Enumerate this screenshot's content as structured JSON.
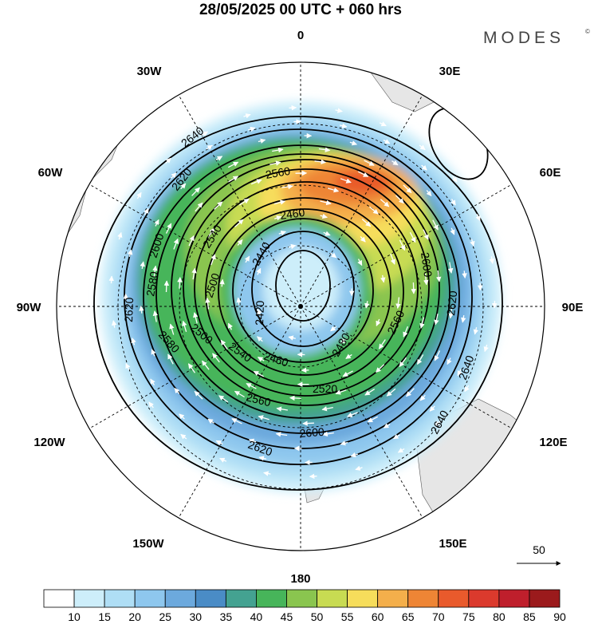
{
  "title": "28/05/2025  00 UTC  + 060 hrs",
  "brand": {
    "name": "MODES",
    "mark": "©"
  },
  "longitude_labels": [
    "0",
    "30E",
    "60E",
    "90E",
    "120E",
    "150E",
    "180",
    "150W",
    "120W",
    "90W",
    "60W",
    "30W"
  ],
  "contour_labels": [
    "2640",
    "2620",
    "2560",
    "2460",
    "2600",
    "2540",
    "2440",
    "2580",
    "2500",
    "2420",
    "2620",
    "2600",
    "2500",
    "2480",
    "2560",
    "2460",
    "2540",
    "2580",
    "2520",
    "2560",
    "2620",
    "2640",
    "2640",
    "2620",
    "2600"
  ],
  "contour_values": [
    2420,
    2440,
    2460,
    2480,
    2500,
    2520,
    2540,
    2560,
    2580,
    2600,
    2620,
    2640
  ],
  "vector_reference": {
    "label": "50"
  },
  "colorbar": {
    "ticks": [
      "10",
      "15",
      "20",
      "25",
      "30",
      "35",
      "40",
      "45",
      "50",
      "55",
      "60",
      "65",
      "70",
      "75",
      "80",
      "85",
      "90"
    ],
    "colors": [
      "#ffffff",
      "#cdeefa",
      "#afdef5",
      "#8ec7ee",
      "#6ca9dd",
      "#4a8cc6",
      "#44a291",
      "#47b55a",
      "#8ac54f",
      "#c8db52",
      "#f6dd5b",
      "#f4af4b",
      "#ee8535",
      "#e95a2c",
      "#db3a2d",
      "#bf1f2c",
      "#9b1a1c"
    ]
  },
  "colors": {
    "land": "#e4e4e4",
    "contour": "#000000",
    "arrow": "#ffffff"
  }
}
